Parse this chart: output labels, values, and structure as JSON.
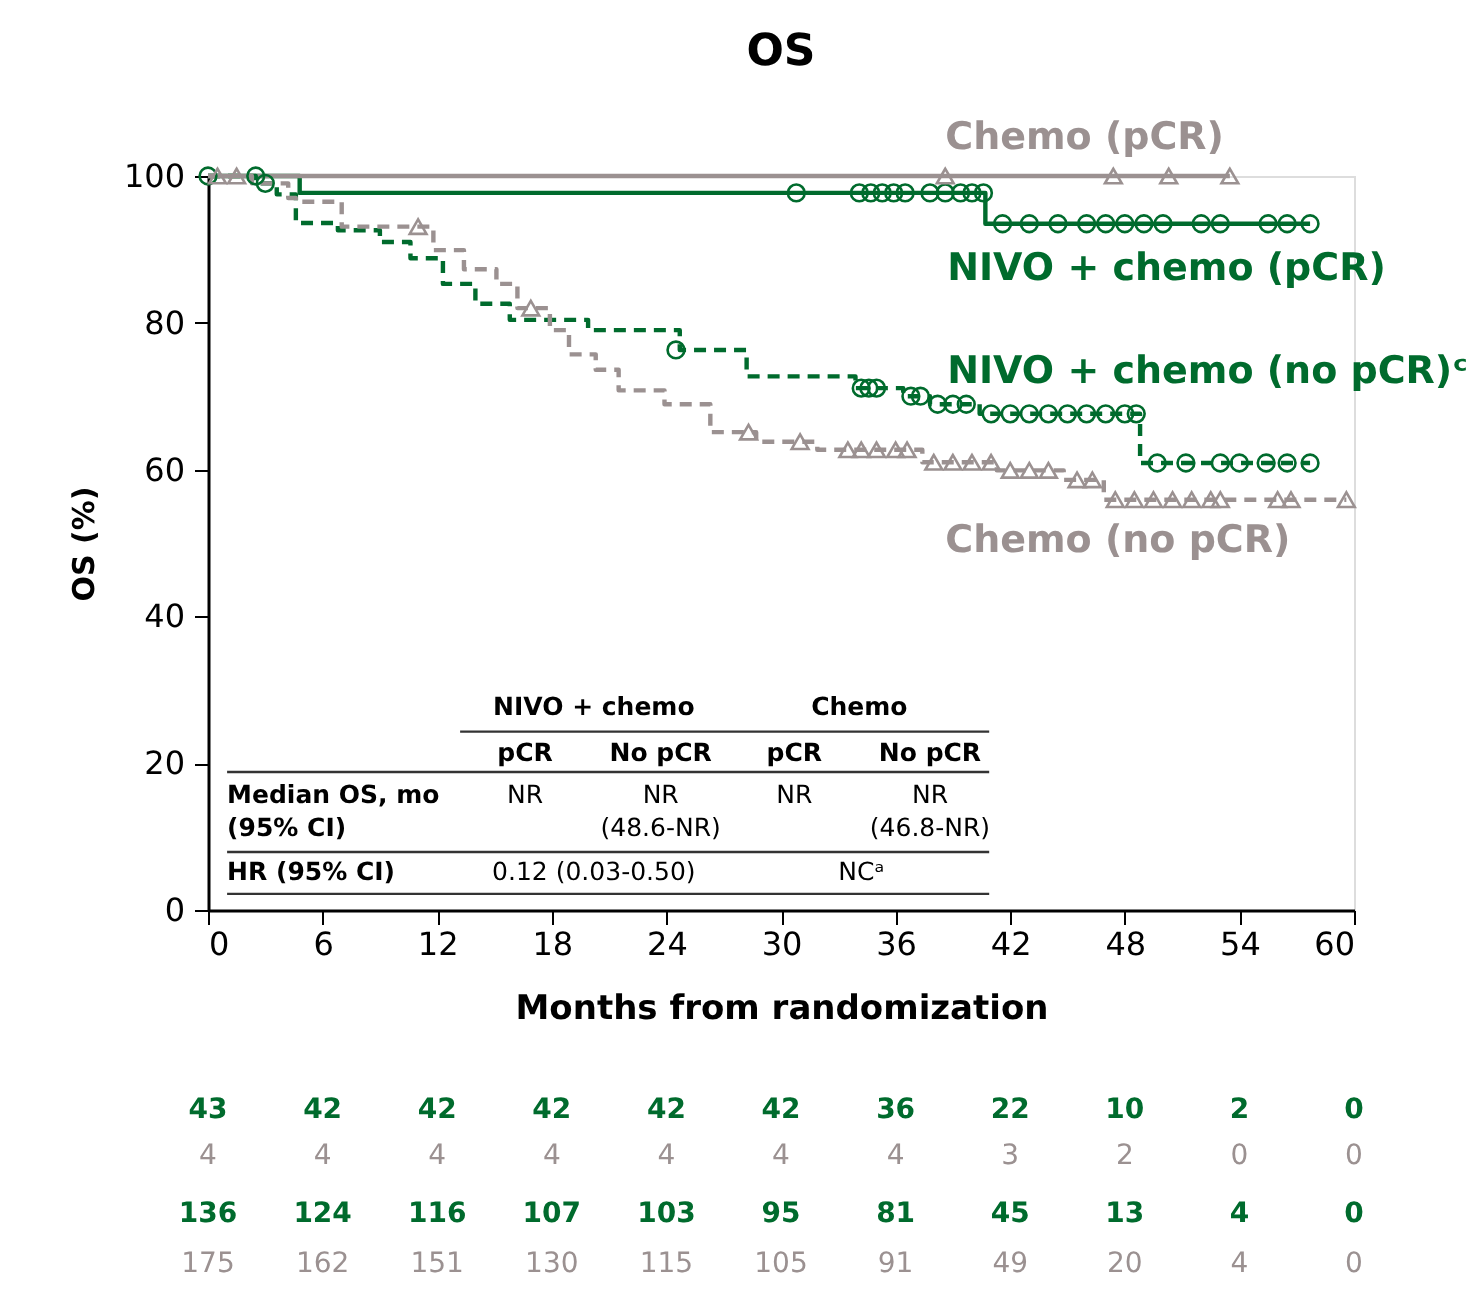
{
  "chart_data": {
    "type": "step",
    "title": "OS",
    "xlabel": "Months from randomization",
    "ylabel": "OS (%)",
    "xlim": [
      0,
      60
    ],
    "xticks": [
      0,
      6,
      12,
      18,
      24,
      30,
      36,
      42,
      48,
      54,
      60
    ],
    "ylim": [
      0,
      100
    ],
    "yticks": [
      0,
      20,
      40,
      60,
      80,
      100
    ],
    "grid": false,
    "series": [
      {
        "name": "NIVO + chemo (pCR)",
        "color": "#006b2d",
        "line_style": "solid",
        "x": [
          0,
          4.8,
          40.7,
          57.7
        ],
        "values": [
          100,
          97.7,
          93.5,
          93.5
        ]
      },
      {
        "name": "Chemo (pCR)",
        "color": "#9b9191",
        "line_style": "solid",
        "x": [
          0,
          53.5
        ],
        "values": [
          100,
          100
        ]
      },
      {
        "name": "NIVO + chemo (no pCR)ᶜ",
        "color": "#006b2d",
        "line_style": "dashed",
        "x": [
          0,
          2.5,
          3.6,
          4.6,
          6.8,
          9.0,
          10.6,
          12.3,
          14.0,
          15.8,
          19.9,
          24.7,
          28.2,
          33.9,
          36.4,
          37.8,
          40.4,
          48.8,
          57.7
        ],
        "values": [
          100,
          99,
          97.5,
          93.6,
          92.6,
          91.0,
          88.8,
          85.3,
          82.6,
          80.4,
          79.0,
          76.3,
          72.7,
          71.1,
          70.0,
          68.9,
          67.6,
          60.9,
          60.9
        ]
      },
      {
        "name": "Chemo (no pCR)",
        "color": "#9b9191",
        "line_style": "dashed",
        "x": [
          0,
          2.3,
          4.2,
          4.6,
          7.0,
          11.8,
          13.4,
          15.1,
          16.2,
          17.9,
          18.9,
          20.3,
          21.5,
          23.9,
          26.3,
          28.7,
          31.9,
          37.4,
          41.3,
          44.8,
          46.9,
          59.6
        ],
        "values": [
          100,
          99,
          97.0,
          96.5,
          93.1,
          89.9,
          87.3,
          85.3,
          82.0,
          79.0,
          75.7,
          73.6,
          70.8,
          68.9,
          65.1,
          63.8,
          62.7,
          61.0,
          59.9,
          58.6,
          55.9,
          55.9
        ]
      },
      {
        "type": "scatter",
        "marker": "circle",
        "color": "#006b2d",
        "x": [
          0,
          2.5,
          30.8,
          34.1,
          34.7,
          35.3,
          35.9,
          36.5,
          37.8,
          38.6,
          39.4,
          40,
          40.6,
          41.6,
          43,
          44.5,
          46,
          47,
          48,
          49,
          50,
          52,
          53,
          55.5,
          56.5,
          57.7
        ],
        "values": [
          100,
          100,
          97.7,
          97.7,
          97.7,
          97.7,
          97.7,
          97.7,
          97.7,
          97.7,
          97.7,
          97.7,
          97.7,
          93.5,
          93.5,
          93.5,
          93.5,
          93.5,
          93.5,
          93.5,
          93.5,
          93.5,
          93.5,
          93.5,
          93.5,
          93.5
        ]
      },
      {
        "type": "scatter",
        "marker": "triangle",
        "color": "#9b9191",
        "x": [
          0.5,
          1.5,
          38.6,
          47.4,
          50.3,
          53.5
        ],
        "values": [
          100,
          100,
          100,
          100,
          100,
          100
        ]
      },
      {
        "type": "scatter",
        "marker": "circle",
        "color": "#006b2d",
        "x": [
          3.0,
          24.5,
          34.2,
          34.6,
          35.0,
          36.8,
          37.3,
          38.2,
          39,
          39.7,
          41,
          42,
          43,
          44,
          45,
          46,
          47,
          48,
          48.6,
          49.7,
          51.2,
          53,
          54,
          55.4,
          56.5,
          57.7
        ],
        "values": [
          99,
          76.3,
          71.1,
          71.1,
          71.1,
          70.0,
          70.0,
          68.9,
          68.9,
          68.9,
          67.6,
          67.6,
          67.6,
          67.6,
          67.6,
          67.6,
          67.6,
          67.6,
          67.6,
          60.9,
          60.9,
          60.9,
          60.9,
          60.9,
          60.9,
          60.9
        ]
      },
      {
        "type": "scatter",
        "marker": "triangle",
        "color": "#9b9191",
        "x": [
          11.0,
          16.9,
          28.3,
          31.0,
          33.5,
          34.2,
          35,
          36,
          36.6,
          38,
          39,
          40,
          41,
          42,
          43,
          44,
          45.5,
          46.3,
          47.5,
          48.5,
          49.5,
          50.5,
          51.5,
          52.5,
          53,
          56,
          56.7,
          59.6
        ],
        "values": [
          93.1,
          82.0,
          65.1,
          63.8,
          62.7,
          62.7,
          62.7,
          62.7,
          62.7,
          61.0,
          61.0,
          61.0,
          61.0,
          59.9,
          59.9,
          59.9,
          58.6,
          58.6,
          55.9,
          55.9,
          55.9,
          55.9,
          55.9,
          55.9,
          55.9,
          55.9,
          55.9,
          55.9
        ]
      }
    ],
    "annotations": [
      "NIVO + chemo",
      "Chemo",
      "pCR",
      "No pCR",
      "pCR",
      "No pCR",
      "Median OS, mo",
      "(95% CI)",
      "NR",
      "NR",
      "(48.6-NR)",
      "NR",
      "NR",
      "(46.8-NR)",
      "HR (95% CI)",
      "0.12 (0.03-0.50)",
      "NCᵃ",
      "43 42 42 42 42 42 36 22 10 2 0",
      "4 4 4 4 4 4 4 3 2 0 0",
      "136 124 116 107 103 95 81 45 13 4 0",
      "175 162 151 130 115 105 91 49 20 4 0"
    ]
  }
}
